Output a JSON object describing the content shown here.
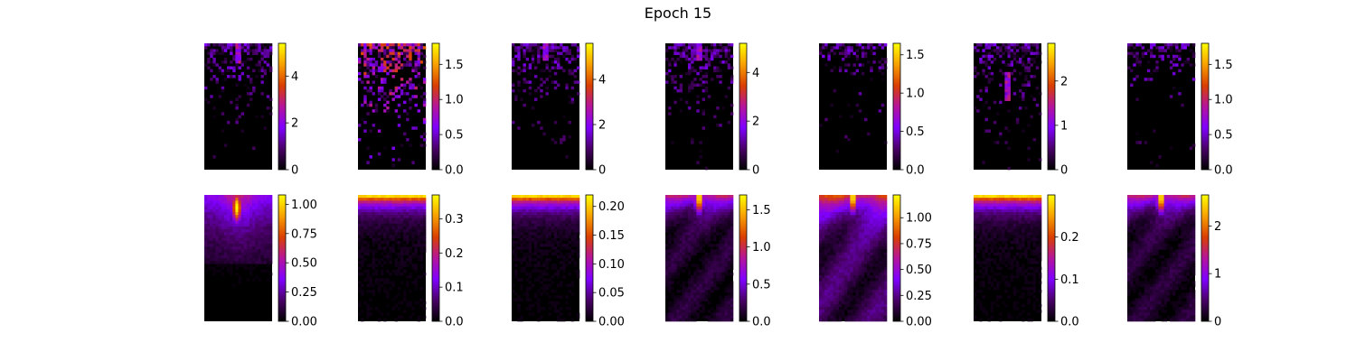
{
  "title": "Epoch 15",
  "colormap": {
    "name": "gnuplot",
    "stops": [
      "#000000",
      "#4a0068",
      "#8000ff",
      "#b5149b",
      "#da4000",
      "#f8a000",
      "#ffff00"
    ]
  },
  "chart_data": [
    {
      "type": "heatmap",
      "row": 0,
      "col": 0,
      "vmin": 0,
      "vmax": 5.4,
      "ticks": [
        0,
        2,
        4
      ],
      "tick_labels": [
        "0",
        "2",
        "4"
      ],
      "pattern": "sparse",
      "hotspot": [
        0.5,
        0.04
      ]
    },
    {
      "type": "heatmap",
      "row": 0,
      "col": 1,
      "vmin": 0,
      "vmax": 1.8,
      "ticks": [
        0.0,
        0.5,
        1.0,
        1.5
      ],
      "tick_labels": [
        "0.0",
        "0.5",
        "1.0",
        "1.5"
      ],
      "pattern": "sparse-scattered",
      "hotspot": null
    },
    {
      "type": "heatmap",
      "row": 0,
      "col": 2,
      "vmin": 0,
      "vmax": 5.6,
      "ticks": [
        0,
        2,
        4
      ],
      "tick_labels": [
        "0",
        "2",
        "4"
      ],
      "pattern": "sparse",
      "hotspot": [
        0.5,
        0.02
      ]
    },
    {
      "type": "heatmap",
      "row": 0,
      "col": 3,
      "vmin": 0,
      "vmax": 5.2,
      "ticks": [
        0,
        2,
        4
      ],
      "tick_labels": [
        "0",
        "2",
        "4"
      ],
      "pattern": "sparse",
      "hotspot": [
        0.5,
        0.03
      ]
    },
    {
      "type": "heatmap",
      "row": 0,
      "col": 4,
      "vmin": 0,
      "vmax": 1.65,
      "ticks": [
        0.0,
        0.5,
        1.0,
        1.5
      ],
      "tick_labels": [
        "0.0",
        "0.5",
        "1.0",
        "1.5"
      ],
      "pattern": "sparse-top",
      "hotspot": null
    },
    {
      "type": "heatmap",
      "row": 0,
      "col": 5,
      "vmin": 0,
      "vmax": 2.85,
      "ticks": [
        0,
        1,
        2
      ],
      "tick_labels": [
        "0",
        "1",
        "2"
      ],
      "pattern": "sparse",
      "hotspot": [
        0.5,
        0.35
      ]
    },
    {
      "type": "heatmap",
      "row": 0,
      "col": 6,
      "vmin": 0,
      "vmax": 1.8,
      "ticks": [
        0.0,
        0.5,
        1.0,
        1.5
      ],
      "tick_labels": [
        "0.0",
        "0.5",
        "1.0",
        "1.5"
      ],
      "pattern": "sparse-top",
      "hotspot": null
    },
    {
      "type": "heatmap",
      "row": 1,
      "col": 0,
      "vmin": 0,
      "vmax": 1.08,
      "ticks": [
        0.0,
        0.25,
        0.5,
        0.75,
        1.0
      ],
      "tick_labels": [
        "0.00",
        "0.25",
        "0.50",
        "0.75",
        "1.00"
      ],
      "pattern": "smooth-plume",
      "hotspot": [
        0.48,
        0.1
      ]
    },
    {
      "type": "heatmap",
      "row": 1,
      "col": 1,
      "vmin": 0,
      "vmax": 0.37,
      "ticks": [
        0.0,
        0.1,
        0.2,
        0.3
      ],
      "tick_labels": [
        "0.0",
        "0.1",
        "0.2",
        "0.3"
      ],
      "pattern": "smooth-band",
      "hotspot": null
    },
    {
      "type": "heatmap",
      "row": 1,
      "col": 2,
      "vmin": 0,
      "vmax": 0.22,
      "ticks": [
        0.0,
        0.05,
        0.1,
        0.15,
        0.2
      ],
      "tick_labels": [
        "0.00",
        "0.05",
        "0.10",
        "0.15",
        "0.20"
      ],
      "pattern": "smooth-band",
      "hotspot": null
    },
    {
      "type": "heatmap",
      "row": 1,
      "col": 3,
      "vmin": 0,
      "vmax": 1.7,
      "ticks": [
        0.0,
        0.5,
        1.0,
        1.5
      ],
      "tick_labels": [
        "0.0",
        "0.5",
        "1.0",
        "1.5"
      ],
      "pattern": "smooth-top",
      "hotspot": [
        0.5,
        0.02
      ]
    },
    {
      "type": "heatmap",
      "row": 1,
      "col": 4,
      "vmin": 0,
      "vmax": 1.22,
      "ticks": [
        0.0,
        0.25,
        0.5,
        0.75,
        1.0
      ],
      "tick_labels": [
        "0.00",
        "0.25",
        "0.50",
        "0.75",
        "1.00"
      ],
      "pattern": "smooth-diffuse",
      "hotspot": [
        0.5,
        0.02
      ]
    },
    {
      "type": "heatmap",
      "row": 1,
      "col": 5,
      "vmin": 0,
      "vmax": 0.3,
      "ticks": [
        0.0,
        0.1,
        0.2
      ],
      "tick_labels": [
        "0.0",
        "0.1",
        "0.2"
      ],
      "pattern": "smooth-band",
      "hotspot": null
    },
    {
      "type": "heatmap",
      "row": 1,
      "col": 6,
      "vmin": 0,
      "vmax": 2.65,
      "ticks": [
        0,
        1,
        2
      ],
      "tick_labels": [
        "0",
        "1",
        "2"
      ],
      "pattern": "smooth-top",
      "hotspot": [
        0.5,
        0.02
      ]
    }
  ]
}
